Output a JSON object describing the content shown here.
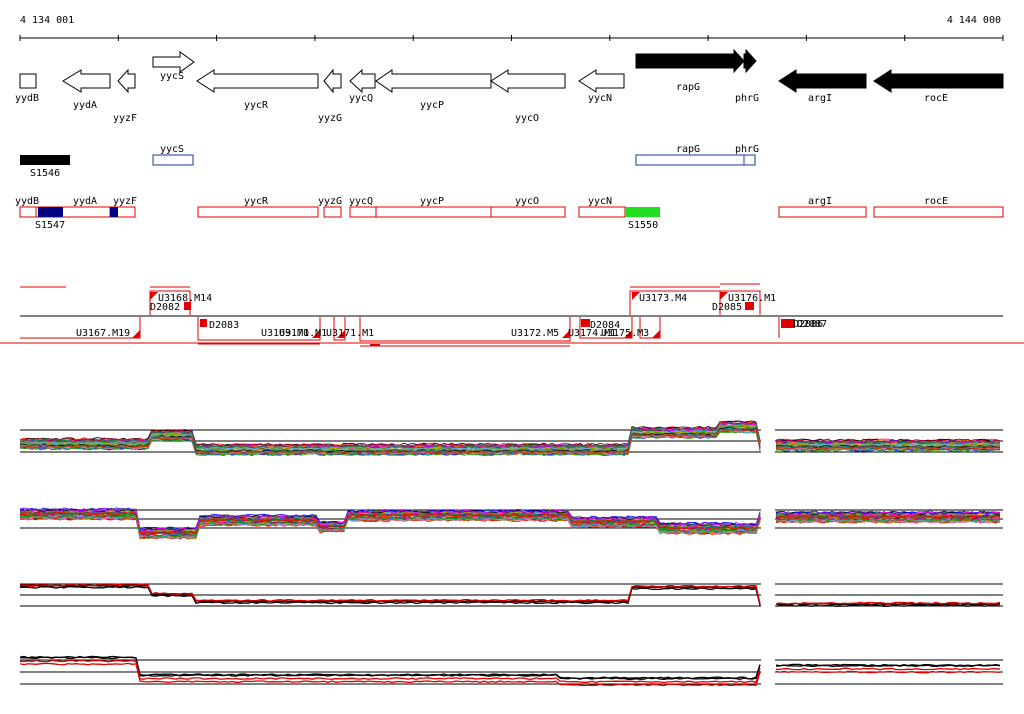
{
  "ruler": {
    "start_label": "4 134 001",
    "end_label": "4 144 000"
  },
  "genes": [
    {
      "name": "yydB",
      "label": "yydB"
    },
    {
      "name": "yydA",
      "label": "yydA"
    },
    {
      "name": "yyzF",
      "label": "yyzF"
    },
    {
      "name": "yycS",
      "label": "yycS"
    },
    {
      "name": "yycR",
      "label": "yycR"
    },
    {
      "name": "yyzG",
      "label": "yyzG"
    },
    {
      "name": "yycQ",
      "label": "yycQ"
    },
    {
      "name": "yycP",
      "label": "yycP"
    },
    {
      "name": "yycO",
      "label": "yycO"
    },
    {
      "name": "yycN",
      "label": "yycN"
    },
    {
      "name": "rapG",
      "label": "rapG"
    },
    {
      "name": "phrG",
      "label": "phrG"
    },
    {
      "name": "argI",
      "label": "argI"
    },
    {
      "name": "rocE",
      "label": "rocE"
    }
  ],
  "black_bars": [
    {
      "label": "S1546"
    }
  ],
  "blue_track": [
    {
      "label": "yycS"
    },
    {
      "label": "rapG"
    },
    {
      "label": "phrG"
    }
  ],
  "red_track": [
    {
      "label": "yydB"
    },
    {
      "label": "yydA"
    },
    {
      "label": "yyzF"
    },
    {
      "label": "yycR"
    },
    {
      "label": "yyzG"
    },
    {
      "label": "yycQ"
    },
    {
      "label": "yycP"
    },
    {
      "label": "yycO"
    },
    {
      "label": "yycN"
    },
    {
      "label": "argI"
    },
    {
      "label": "rocE"
    }
  ],
  "red_track_markers": [
    {
      "label": "S1547"
    },
    {
      "label": "S1550"
    }
  ],
  "transcription_units": [
    {
      "label": "U3168.M14"
    },
    {
      "label": "D2082"
    },
    {
      "label": "U3173.M4"
    },
    {
      "label": "U3176.M1"
    },
    {
      "label": "D2085"
    },
    {
      "label": "U3167.M19"
    },
    {
      "label": "D2083"
    },
    {
      "label": "U3169.M1"
    },
    {
      "label": "U3170.M1"
    },
    {
      "label": "U3171.M1"
    },
    {
      "label": "U3172.M5"
    },
    {
      "label": "D2084"
    },
    {
      "label": "U3174.M1"
    },
    {
      "label": "U3175.M3"
    },
    {
      "label": "D2086"
    },
    {
      "label": "D2087"
    }
  ],
  "colors": {
    "red": "#e00000",
    "blue": "#2030a0",
    "navy": "#000080",
    "green": "#22dd22",
    "black": "#000000"
  }
}
